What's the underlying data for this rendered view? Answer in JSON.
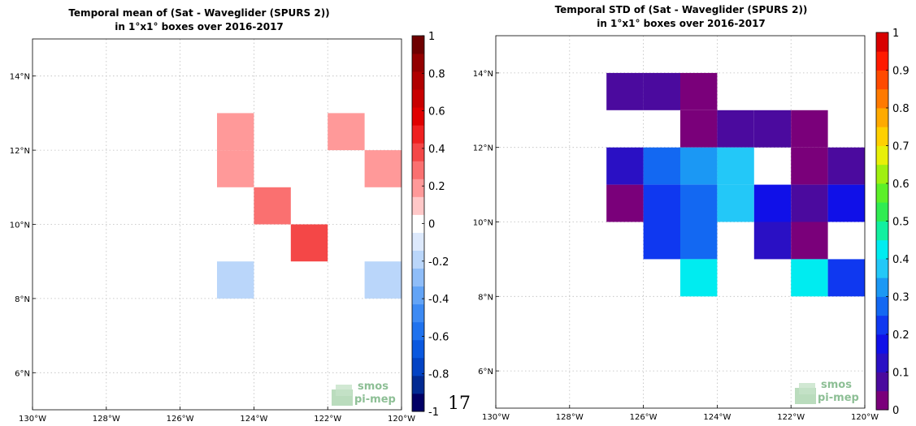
{
  "page_number": "17",
  "logo": {
    "line1": "smos",
    "line2": "pi-mep"
  },
  "chart_data": [
    {
      "type": "heatmap",
      "title": "Temporal mean of (Sat - Waveglider (SPURS 2))",
      "subtitle": "in 1°x1° boxes over 2016-2017",
      "xlabel": "",
      "ylabel": "",
      "xlim": [
        -130,
        -120
      ],
      "ylim": [
        5,
        15
      ],
      "x_ticks": [
        -130,
        -128,
        -126,
        -124,
        -122,
        -120
      ],
      "x_tick_labels": [
        "130°W",
        "128°W",
        "126°W",
        "124°W",
        "122°W",
        "120°W"
      ],
      "y_ticks": [
        6,
        8,
        10,
        12,
        14
      ],
      "y_tick_labels": [
        "6°N",
        "8°N",
        "10°N",
        "12°N",
        "14°N"
      ],
      "grid": true,
      "colorbar": {
        "min": -1,
        "max": 1,
        "step": 0.1,
        "ticks": [
          "1",
          "0.8",
          "0.6",
          "0.4",
          "0.2",
          "0",
          "-0.2",
          "-0.4",
          "-0.6",
          "-0.8",
          "-1"
        ],
        "colors": [
          "#020066",
          "#022a92",
          "#0343c4",
          "#0a58df",
          "#1f72ee",
          "#3d8af3",
          "#63a4f6",
          "#8fbdf8",
          "#bad6fa",
          "#dde9fc",
          "#ffffff",
          "#ffc8c8",
          "#ff9999",
          "#fa7070",
          "#f44747",
          "#ef2020",
          "#e00000",
          "#c80000",
          "#b00000",
          "#930000",
          "#6e0000"
        ]
      },
      "cells": [
        {
          "lon": -125,
          "lat": 12,
          "value": 0.15
        },
        {
          "lon": -125,
          "lat": 11,
          "value": 0.15
        },
        {
          "lon": -122,
          "lat": 12,
          "value": 0.15
        },
        {
          "lon": -121,
          "lat": 11,
          "value": 0.15
        },
        {
          "lon": -124,
          "lat": 10,
          "value": 0.25
        },
        {
          "lon": -123,
          "lat": 9,
          "value": 0.35
        },
        {
          "lon": -125,
          "lat": 8,
          "value": -0.15
        },
        {
          "lon": -121,
          "lat": 8,
          "value": -0.15
        }
      ]
    },
    {
      "type": "heatmap",
      "title": "Temporal STD of (Sat - Waveglider (SPURS 2))",
      "subtitle": "in 1°x1° boxes over 2016-2017",
      "xlabel": "",
      "ylabel": "",
      "xlim": [
        -130,
        -120
      ],
      "ylim": [
        5,
        15
      ],
      "x_ticks": [
        -130,
        -128,
        -126,
        -124,
        -122,
        -120
      ],
      "x_tick_labels": [
        "130°W",
        "128°W",
        "126°W",
        "124°W",
        "122°W",
        "120°W"
      ],
      "y_ticks": [
        6,
        8,
        10,
        12,
        14
      ],
      "y_tick_labels": [
        "6°N",
        "8°N",
        "10°N",
        "12°N",
        "14°N"
      ],
      "grid": true,
      "colorbar": {
        "min": 0,
        "max": 1,
        "step": 0.05,
        "ticks": [
          "1",
          "0.9",
          "0.8",
          "0.7",
          "0.6",
          "0.5",
          "0.4",
          "0.3",
          "0.2",
          "0.1",
          "0"
        ],
        "colors": [
          "#7a007a",
          "#4b0a9e",
          "#2a10c4",
          "#1010e8",
          "#0f38f0",
          "#1368f2",
          "#1b98f4",
          "#23c8f8",
          "#00ecf0",
          "#12f0a0",
          "#30ec52",
          "#5cf028",
          "#a0f010",
          "#e8f008",
          "#ffd000",
          "#ffaa00",
          "#ff7a00",
          "#ff4a00",
          "#ff1a00",
          "#d80000"
        ]
      },
      "cells": [
        {
          "lon": -127,
          "lat": 13,
          "value": 0.07
        },
        {
          "lon": -126,
          "lat": 13,
          "value": 0.07
        },
        {
          "lon": -125,
          "lat": 13,
          "value": 0.02
        },
        {
          "lon": -125,
          "lat": 12,
          "value": 0.02
        },
        {
          "lon": -124,
          "lat": 12,
          "value": 0.07
        },
        {
          "lon": -123,
          "lat": 12,
          "value": 0.07
        },
        {
          "lon": -122,
          "lat": 12,
          "value": 0.02
        },
        {
          "lon": -122,
          "lat": 11,
          "value": 0.02
        },
        {
          "lon": -127,
          "lat": 11,
          "value": 0.12
        },
        {
          "lon": -126,
          "lat": 11,
          "value": 0.28
        },
        {
          "lon": -125,
          "lat": 11,
          "value": 0.33
        },
        {
          "lon": -124,
          "lat": 11,
          "value": 0.38
        },
        {
          "lon": -121,
          "lat": 11,
          "value": 0.07
        },
        {
          "lon": -127,
          "lat": 10,
          "value": 0.02
        },
        {
          "lon": -126,
          "lat": 10,
          "value": 0.23
        },
        {
          "lon": -125,
          "lat": 10,
          "value": 0.28
        },
        {
          "lon": -124,
          "lat": 10,
          "value": 0.38
        },
        {
          "lon": -123,
          "lat": 10,
          "value": 0.18
        },
        {
          "lon": -122,
          "lat": 10,
          "value": 0.07
        },
        {
          "lon": -121,
          "lat": 10,
          "value": 0.18
        },
        {
          "lon": -126,
          "lat": 9,
          "value": 0.23
        },
        {
          "lon": -125,
          "lat": 9,
          "value": 0.28
        },
        {
          "lon": -123,
          "lat": 9,
          "value": 0.12
        },
        {
          "lon": -122,
          "lat": 9,
          "value": 0.02
        },
        {
          "lon": -125,
          "lat": 8,
          "value": 0.43
        },
        {
          "lon": -122,
          "lat": 8,
          "value": 0.43
        },
        {
          "lon": -121,
          "lat": 8,
          "value": 0.23
        }
      ]
    }
  ]
}
